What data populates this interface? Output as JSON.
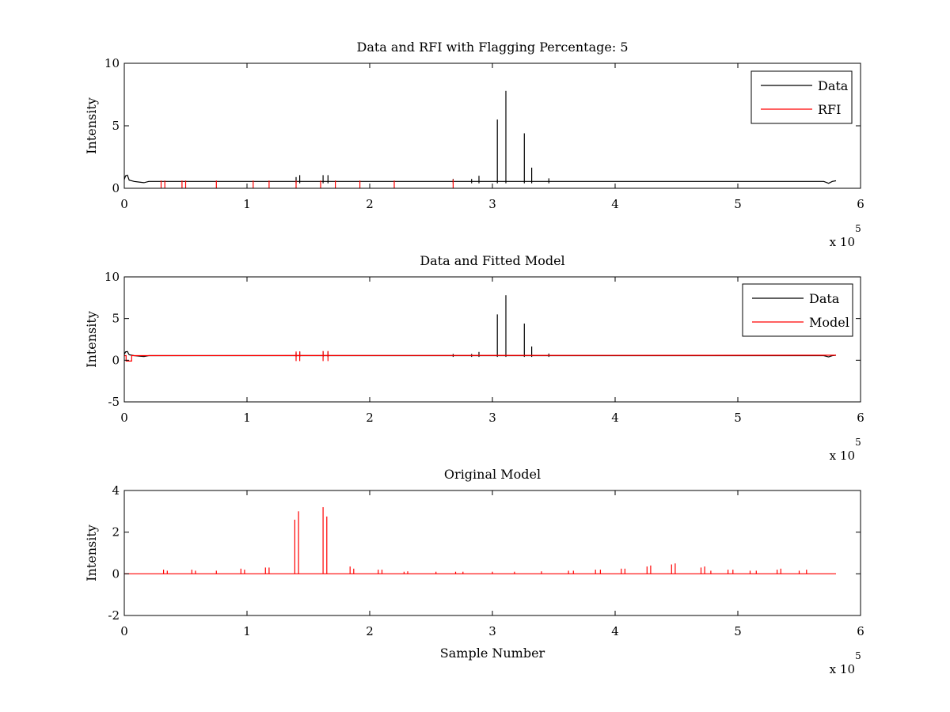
{
  "figure": {
    "background": "#ffffff",
    "colors": {
      "data": "#000000",
      "rfi": "#ff0000",
      "model": "#ff0000"
    }
  },
  "chart_data": [
    {
      "type": "line",
      "title": "Data and RFI with Flagging Percentage: 5",
      "xlabel": "",
      "ylabel": "Intensity",
      "xlim": [
        0,
        600000
      ],
      "ylim": [
        0,
        10
      ],
      "xticks": [
        0,
        100000,
        200000,
        300000,
        400000,
        500000,
        600000
      ],
      "xtick_labels": [
        "0",
        "1",
        "2",
        "3",
        "4",
        "5",
        "6"
      ],
      "yticks": [
        0,
        5,
        10
      ],
      "ytick_labels": [
        "0",
        "5",
        "10"
      ],
      "x_multiplier": {
        "base": "x 10",
        "exponent": "5"
      },
      "grid": false,
      "legend": {
        "position": "top-right",
        "entries": [
          "Data",
          "RFI"
        ]
      },
      "series": [
        {
          "name": "Data",
          "color": "#000000",
          "baseline": [
            [
              0,
              0.7
            ],
            [
              1000,
              1.0
            ],
            [
              2500,
              1.05
            ],
            [
              4000,
              0.65
            ],
            [
              8000,
              0.55
            ],
            [
              12000,
              0.5
            ],
            [
              16000,
              0.45
            ],
            [
              20000,
              0.55
            ],
            [
              570000,
              0.55
            ],
            [
              574000,
              0.4
            ],
            [
              577000,
              0.55
            ],
            [
              580000,
              0.6
            ]
          ],
          "spikes": [
            [
              140000,
              0.9
            ],
            [
              143000,
              1.05
            ],
            [
              162000,
              1.05
            ],
            [
              166000,
              1.05
            ],
            [
              268000,
              0.75
            ],
            [
              283000,
              0.75
            ],
            [
              289000,
              1.0
            ],
            [
              304000,
              5.5
            ],
            [
              311000,
              7.8
            ],
            [
              326000,
              4.4
            ],
            [
              332000,
              1.65
            ],
            [
              346000,
              0.8
            ]
          ]
        },
        {
          "name": "RFI",
          "color": "#ff0000",
          "spikes": [
            [
              30000,
              0.62
            ],
            [
              33000,
              0.62
            ],
            [
              47000,
              0.62
            ],
            [
              50000,
              0.62
            ],
            [
              75000,
              0.62
            ],
            [
              105000,
              0.62
            ],
            [
              118000,
              0.62
            ],
            [
              140000,
              0.62
            ],
            [
              160000,
              0.62
            ],
            [
              172000,
              0.62
            ],
            [
              192000,
              0.62
            ],
            [
              220000,
              0.62
            ],
            [
              268000,
              0.7
            ]
          ]
        }
      ]
    },
    {
      "type": "line",
      "title": "Data and Fitted Model",
      "xlabel": "",
      "ylabel": "Intensity",
      "xlim": [
        0,
        600000
      ],
      "ylim": [
        -5,
        10
      ],
      "xticks": [
        0,
        100000,
        200000,
        300000,
        400000,
        500000,
        600000
      ],
      "xtick_labels": [
        "0",
        "1",
        "2",
        "3",
        "4",
        "5",
        "6"
      ],
      "yticks": [
        -5,
        0,
        5,
        10
      ],
      "ytick_labels": [
        "-5",
        "0",
        "5",
        "10"
      ],
      "x_multiplier": {
        "base": "x 10",
        "exponent": "5"
      },
      "grid": false,
      "legend": {
        "position": "top-right",
        "entries": [
          "Data",
          "Model"
        ]
      },
      "series": [
        {
          "name": "Data",
          "color": "#000000",
          "baseline": [
            [
              0,
              0.7
            ],
            [
              1000,
              1.0
            ],
            [
              2500,
              1.05
            ],
            [
              4000,
              0.65
            ],
            [
              8000,
              0.55
            ],
            [
              12000,
              0.5
            ],
            [
              16000,
              0.45
            ],
            [
              20000,
              0.55
            ],
            [
              570000,
              0.55
            ],
            [
              574000,
              0.4
            ],
            [
              577000,
              0.55
            ],
            [
              580000,
              0.6
            ]
          ],
          "spikes": [
            [
              140000,
              0.9
            ],
            [
              143000,
              1.05
            ],
            [
              162000,
              1.05
            ],
            [
              166000,
              1.05
            ],
            [
              268000,
              0.75
            ],
            [
              283000,
              0.75
            ],
            [
              289000,
              1.0
            ],
            [
              304000,
              5.5
            ],
            [
              311000,
              7.8
            ],
            [
              326000,
              4.4
            ],
            [
              332000,
              1.65
            ],
            [
              346000,
              0.8
            ]
          ]
        },
        {
          "name": "Model",
          "color": "#ff0000",
          "baseline": [
            [
              0,
              0.55
            ],
            [
              1500,
              0.55
            ],
            [
              1500,
              -0.1
            ],
            [
              6000,
              -0.1
            ],
            [
              6000,
              0.55
            ],
            [
              580000,
              0.6
            ]
          ],
          "spikes": [
            [
              140000,
              1.05
            ],
            [
              143000,
              1.05
            ],
            [
              162000,
              1.1
            ],
            [
              166000,
              1.1
            ]
          ]
        }
      ]
    },
    {
      "type": "line",
      "title": "Original Model",
      "xlabel": "Sample Number",
      "ylabel": "Intensity",
      "xlim": [
        0,
        600000
      ],
      "ylim": [
        -2,
        4
      ],
      "xticks": [
        0,
        100000,
        200000,
        300000,
        400000,
        500000,
        600000
      ],
      "xtick_labels": [
        "0",
        "1",
        "2",
        "3",
        "4",
        "5",
        "6"
      ],
      "yticks": [
        -2,
        0,
        2,
        4
      ],
      "ytick_labels": [
        "-2",
        "0",
        "2",
        "4"
      ],
      "x_multiplier": {
        "base": "x 10",
        "exponent": "5"
      },
      "grid": false,
      "legend": null,
      "series": [
        {
          "name": "",
          "color": "#ff0000",
          "baseline": [
            [
              0,
              0
            ],
            [
              580000,
              0
            ]
          ],
          "spikes": [
            [
              32000,
              0.2
            ],
            [
              35000,
              0.15
            ],
            [
              55000,
              0.2
            ],
            [
              58000,
              0.15
            ],
            [
              75000,
              0.15
            ],
            [
              95000,
              0.25
            ],
            [
              98000,
              0.2
            ],
            [
              115000,
              0.3
            ],
            [
              118000,
              0.3
            ],
            [
              139000,
              2.6
            ],
            [
              142000,
              3.0
            ],
            [
              162000,
              3.2
            ],
            [
              165000,
              2.75
            ],
            [
              184000,
              0.35
            ],
            [
              187000,
              0.25
            ],
            [
              207000,
              0.2
            ],
            [
              210000,
              0.2
            ],
            [
              228000,
              0.1
            ],
            [
              231000,
              0.12
            ],
            [
              254000,
              0.1
            ],
            [
              270000,
              0.1
            ],
            [
              276000,
              0.1
            ],
            [
              300000,
              0.1
            ],
            [
              318000,
              0.1
            ],
            [
              340000,
              0.12
            ],
            [
              362000,
              0.15
            ],
            [
              366000,
              0.15
            ],
            [
              384000,
              0.2
            ],
            [
              388000,
              0.2
            ],
            [
              405000,
              0.25
            ],
            [
              408000,
              0.25
            ],
            [
              426000,
              0.35
            ],
            [
              429000,
              0.4
            ],
            [
              446000,
              0.45
            ],
            [
              449000,
              0.5
            ],
            [
              470000,
              0.3
            ],
            [
              473000,
              0.35
            ],
            [
              478000,
              0.15
            ],
            [
              492000,
              0.2
            ],
            [
              496000,
              0.2
            ],
            [
              510000,
              0.15
            ],
            [
              515000,
              0.15
            ],
            [
              532000,
              0.2
            ],
            [
              535000,
              0.25
            ],
            [
              550000,
              0.15
            ],
            [
              556000,
              0.2
            ]
          ]
        }
      ]
    }
  ]
}
